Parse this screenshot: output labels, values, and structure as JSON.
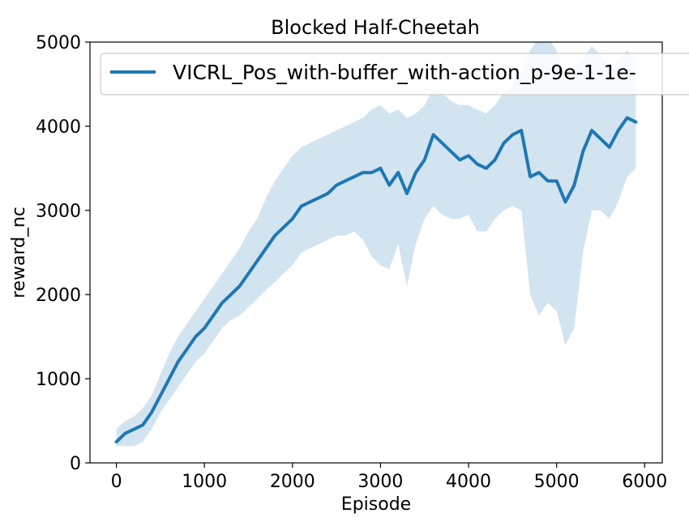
{
  "chart_data": {
    "type": "line",
    "title": "Blocked Half-Cheetah",
    "xlabel": "Episode",
    "ylabel": "reward_nc",
    "xlim": [
      -300,
      6200
    ],
    "ylim": [
      0,
      5000
    ],
    "xticks": [
      0,
      1000,
      2000,
      3000,
      4000,
      5000,
      6000
    ],
    "yticks": [
      0,
      1000,
      2000,
      3000,
      4000,
      5000
    ],
    "xtick_labels": [
      "0",
      "1000",
      "2000",
      "3000",
      "4000",
      "5000",
      "6000"
    ],
    "ytick_labels": [
      "0",
      "1000",
      "2000",
      "3000",
      "4000",
      "5000"
    ],
    "grid": false,
    "legend_position": "top-right",
    "series": [
      {
        "name": "VICRL_Pos_with-buffer_with-action_p-9e-1-1e-",
        "color": "#1f77b4",
        "band_color": "#1f77b4",
        "x": [
          0,
          100,
          200,
          300,
          400,
          500,
          600,
          700,
          800,
          900,
          1000,
          1100,
          1200,
          1300,
          1400,
          1500,
          1600,
          1700,
          1800,
          1900,
          2000,
          2100,
          2200,
          2300,
          2400,
          2500,
          2600,
          2700,
          2800,
          2900,
          3000,
          3100,
          3200,
          3300,
          3400,
          3500,
          3600,
          3700,
          3800,
          3900,
          4000,
          4100,
          4200,
          4300,
          4400,
          4500,
          4600,
          4700,
          4800,
          4900,
          5000,
          5100,
          5200,
          5300,
          5400,
          5500,
          5600,
          5700,
          5800,
          5900
        ],
        "y": [
          250,
          350,
          400,
          450,
          600,
          800,
          1000,
          1200,
          1350,
          1500,
          1600,
          1750,
          1900,
          2000,
          2100,
          2250,
          2400,
          2550,
          2700,
          2800,
          2900,
          3050,
          3100,
          3150,
          3200,
          3300,
          3350,
          3400,
          3450,
          3450,
          3500,
          3300,
          3450,
          3200,
          3450,
          3600,
          3900,
          3800,
          3700,
          3600,
          3650,
          3550,
          3500,
          3600,
          3800,
          3900,
          3950,
          3400,
          3450,
          3350,
          3350,
          3100,
          3300,
          3700,
          3950,
          3850,
          3750,
          3950,
          4100,
          4050
        ],
        "lower": [
          200,
          200,
          200,
          250,
          400,
          600,
          750,
          900,
          1050,
          1200,
          1300,
          1450,
          1600,
          1700,
          1750,
          1850,
          1950,
          2050,
          2150,
          2250,
          2350,
          2500,
          2550,
          2600,
          2650,
          2700,
          2700,
          2750,
          2650,
          2450,
          2350,
          2300,
          2600,
          2100,
          2600,
          2900,
          3050,
          2950,
          2900,
          2900,
          2950,
          2750,
          2750,
          2900,
          3000,
          3050,
          3000,
          2000,
          1750,
          1900,
          1800,
          1400,
          1600,
          2500,
          3000,
          3000,
          2900,
          3100,
          3400,
          3500
        ],
        "upper": [
          400,
          500,
          550,
          650,
          800,
          1050,
          1300,
          1500,
          1650,
          1800,
          1950,
          2100,
          2250,
          2400,
          2550,
          2750,
          2900,
          3150,
          3350,
          3500,
          3650,
          3750,
          3800,
          3850,
          3900,
          3950,
          4000,
          4050,
          4100,
          4200,
          4250,
          4150,
          4200,
          4100,
          4150,
          4250,
          4450,
          4400,
          4300,
          4250,
          4250,
          4200,
          4150,
          4250,
          4400,
          4500,
          4700,
          4900,
          5050,
          5050,
          4900,
          4600,
          4700,
          4800,
          4950,
          4850,
          4700,
          4800,
          4900,
          4800
        ]
      }
    ]
  }
}
